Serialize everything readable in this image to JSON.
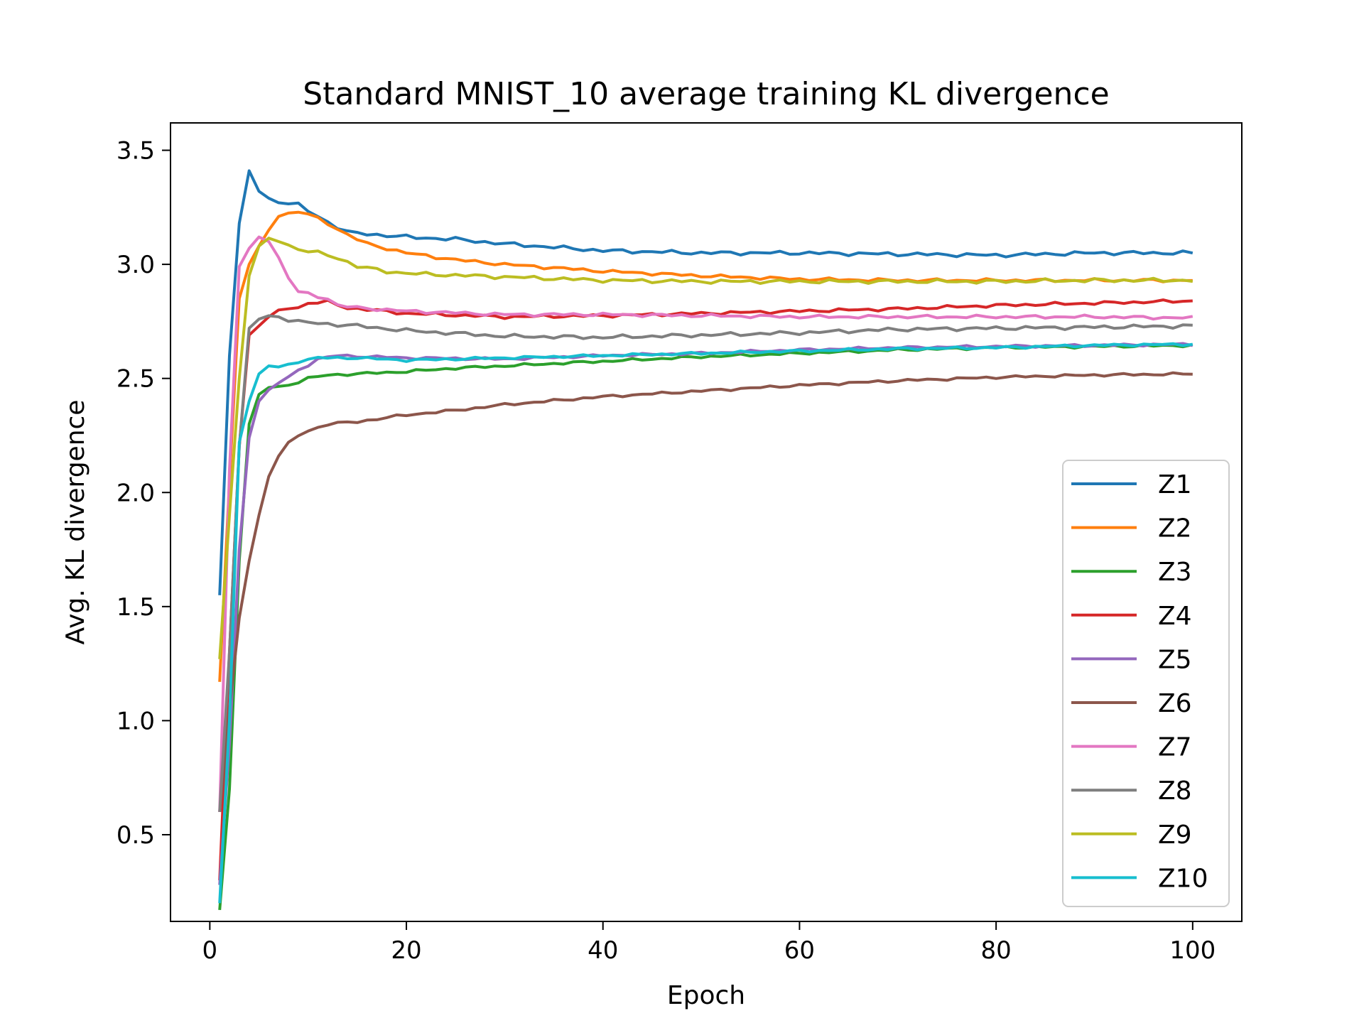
{
  "chart_data": {
    "type": "line",
    "title": "Standard MNIST_10 average training KL divergence",
    "xlabel": "Epoch",
    "ylabel": "Avg. KL divergence",
    "xlim": [
      -4,
      105
    ],
    "ylim": [
      0.12,
      3.62
    ],
    "xticks": [
      0,
      20,
      40,
      60,
      80,
      100
    ],
    "yticks": [
      0.5,
      1.0,
      1.5,
      2.0,
      2.5,
      3.0,
      3.5
    ],
    "xtick_labels": [
      "0",
      "20",
      "40",
      "60",
      "80",
      "100"
    ],
    "ytick_labels": [
      "0.5",
      "1.0",
      "1.5",
      "2.0",
      "2.5",
      "3.0",
      "3.5"
    ],
    "grid": false,
    "legend_position": "lower right",
    "epochs": {
      "start": 1,
      "end": 100
    },
    "series": [
      {
        "name": "Z1",
        "color": "#1f77b4",
        "anchors": [
          [
            1,
            1.55
          ],
          [
            2,
            2.6
          ],
          [
            3,
            3.18
          ],
          [
            4,
            3.41
          ],
          [
            5,
            3.32
          ],
          [
            6,
            3.29
          ],
          [
            7,
            3.27
          ],
          [
            9,
            3.26
          ],
          [
            11,
            3.21
          ],
          [
            14,
            3.14
          ],
          [
            20,
            3.12
          ],
          [
            25,
            3.11
          ],
          [
            30,
            3.09
          ],
          [
            40,
            3.06
          ],
          [
            50,
            3.05
          ],
          [
            60,
            3.05
          ],
          [
            70,
            3.045
          ],
          [
            80,
            3.04
          ],
          [
            90,
            3.05
          ],
          [
            100,
            3.05
          ]
        ],
        "jitter": 0.006
      },
      {
        "name": "Z2",
        "color": "#ff7f0e",
        "anchors": [
          [
            1,
            1.17
          ],
          [
            2,
            2.05
          ],
          [
            3,
            2.85
          ],
          [
            4,
            3.0
          ],
          [
            5,
            3.08
          ],
          [
            6,
            3.15
          ],
          [
            7,
            3.21
          ],
          [
            8,
            3.225
          ],
          [
            9,
            3.23
          ],
          [
            10,
            3.22
          ],
          [
            12,
            3.18
          ],
          [
            14,
            3.13
          ],
          [
            16,
            3.09
          ],
          [
            20,
            3.05
          ],
          [
            25,
            3.02
          ],
          [
            30,
            3.0
          ],
          [
            40,
            2.97
          ],
          [
            50,
            2.95
          ],
          [
            60,
            2.935
          ],
          [
            70,
            2.93
          ],
          [
            80,
            2.93
          ],
          [
            90,
            2.93
          ],
          [
            100,
            2.93
          ]
        ],
        "jitter": 0.005
      },
      {
        "name": "Z3",
        "color": "#2ca02c",
        "anchors": [
          [
            1,
            0.17
          ],
          [
            2,
            0.7
          ],
          [
            3,
            1.7
          ],
          [
            4,
            2.3
          ],
          [
            5,
            2.43
          ],
          [
            6,
            2.46
          ],
          [
            8,
            2.47
          ],
          [
            10,
            2.5
          ],
          [
            12,
            2.515
          ],
          [
            15,
            2.52
          ],
          [
            20,
            2.53
          ],
          [
            25,
            2.545
          ],
          [
            30,
            2.555
          ],
          [
            40,
            2.575
          ],
          [
            50,
            2.595
          ],
          [
            60,
            2.61
          ],
          [
            70,
            2.625
          ],
          [
            80,
            2.635
          ],
          [
            90,
            2.64
          ],
          [
            100,
            2.645
          ]
        ],
        "jitter": 0.004
      },
      {
        "name": "Z4",
        "color": "#d62728",
        "anchors": [
          [
            1,
            0.3
          ],
          [
            2,
            1.3
          ],
          [
            3,
            2.2
          ],
          [
            4,
            2.69
          ],
          [
            5,
            2.73
          ],
          [
            6,
            2.77
          ],
          [
            7,
            2.8
          ],
          [
            9,
            2.81
          ],
          [
            10,
            2.83
          ],
          [
            12,
            2.835
          ],
          [
            14,
            2.81
          ],
          [
            20,
            2.785
          ],
          [
            30,
            2.77
          ],
          [
            40,
            2.775
          ],
          [
            50,
            2.785
          ],
          [
            60,
            2.795
          ],
          [
            70,
            2.805
          ],
          [
            80,
            2.82
          ],
          [
            90,
            2.83
          ],
          [
            100,
            2.84
          ]
        ],
        "jitter": 0.005
      },
      {
        "name": "Z5",
        "color": "#9467bd",
        "anchors": [
          [
            1,
            0.28
          ],
          [
            2,
            0.9
          ],
          [
            3,
            1.75
          ],
          [
            4,
            2.24
          ],
          [
            5,
            2.4
          ],
          [
            6,
            2.45
          ],
          [
            7,
            2.48
          ],
          [
            9,
            2.535
          ],
          [
            11,
            2.585
          ],
          [
            13,
            2.6
          ],
          [
            20,
            2.59
          ],
          [
            30,
            2.585
          ],
          [
            40,
            2.6
          ],
          [
            50,
            2.61
          ],
          [
            60,
            2.625
          ],
          [
            70,
            2.635
          ],
          [
            80,
            2.64
          ],
          [
            90,
            2.645
          ],
          [
            100,
            2.65
          ]
        ],
        "jitter": 0.004
      },
      {
        "name": "Z6",
        "color": "#8c564b",
        "anchors": [
          [
            1,
            0.6
          ],
          [
            2,
            1.05
          ],
          [
            3,
            1.45
          ],
          [
            4,
            1.7
          ],
          [
            5,
            1.9
          ],
          [
            6,
            2.07
          ],
          [
            7,
            2.16
          ],
          [
            8,
            2.22
          ],
          [
            9,
            2.25
          ],
          [
            10,
            2.27
          ],
          [
            12,
            2.3
          ],
          [
            15,
            2.31
          ],
          [
            20,
            2.34
          ],
          [
            25,
            2.36
          ],
          [
            30,
            2.385
          ],
          [
            40,
            2.42
          ],
          [
            50,
            2.445
          ],
          [
            60,
            2.47
          ],
          [
            70,
            2.49
          ],
          [
            80,
            2.505
          ],
          [
            90,
            2.515
          ],
          [
            100,
            2.52
          ]
        ],
        "jitter": 0.004
      },
      {
        "name": "Z7",
        "color": "#e377c2",
        "anchors": [
          [
            1,
            0.6
          ],
          [
            2,
            2.1
          ],
          [
            3,
            2.99
          ],
          [
            4,
            3.07
          ],
          [
            5,
            3.12
          ],
          [
            6,
            3.1
          ],
          [
            7,
            3.03
          ],
          [
            8,
            2.94
          ],
          [
            9,
            2.88
          ],
          [
            11,
            2.86
          ],
          [
            12,
            2.85
          ],
          [
            13,
            2.82
          ],
          [
            15,
            2.81
          ],
          [
            20,
            2.795
          ],
          [
            30,
            2.78
          ],
          [
            40,
            2.78
          ],
          [
            50,
            2.775
          ],
          [
            60,
            2.77
          ],
          [
            70,
            2.77
          ],
          [
            80,
            2.77
          ],
          [
            90,
            2.77
          ],
          [
            100,
            2.765
          ]
        ],
        "jitter": 0.005
      },
      {
        "name": "Z8",
        "color": "#7f7f7f",
        "anchors": [
          [
            1,
            0.6
          ],
          [
            2,
            1.3
          ],
          [
            3,
            2.2
          ],
          [
            4,
            2.72
          ],
          [
            5,
            2.76
          ],
          [
            6,
            2.775
          ],
          [
            7,
            2.77
          ],
          [
            8,
            2.75
          ],
          [
            10,
            2.745
          ],
          [
            15,
            2.73
          ],
          [
            20,
            2.71
          ],
          [
            30,
            2.685
          ],
          [
            40,
            2.68
          ],
          [
            50,
            2.69
          ],
          [
            60,
            2.7
          ],
          [
            70,
            2.715
          ],
          [
            80,
            2.72
          ],
          [
            90,
            2.725
          ],
          [
            100,
            2.73
          ]
        ],
        "jitter": 0.006
      },
      {
        "name": "Z9",
        "color": "#bcbd22",
        "anchors": [
          [
            1,
            1.27
          ],
          [
            2,
            1.9
          ],
          [
            3,
            2.5
          ],
          [
            4,
            2.95
          ],
          [
            5,
            3.08
          ],
          [
            6,
            3.115
          ],
          [
            7,
            3.1
          ],
          [
            8,
            3.085
          ],
          [
            9,
            3.065
          ],
          [
            11,
            3.05
          ],
          [
            13,
            3.03
          ],
          [
            15,
            2.99
          ],
          [
            18,
            2.97
          ],
          [
            20,
            2.96
          ],
          [
            30,
            2.945
          ],
          [
            40,
            2.93
          ],
          [
            50,
            2.925
          ],
          [
            60,
            2.925
          ],
          [
            70,
            2.925
          ],
          [
            80,
            2.925
          ],
          [
            90,
            2.93
          ],
          [
            100,
            2.93
          ]
        ],
        "jitter": 0.006
      },
      {
        "name": "Z10",
        "color": "#17becf",
        "anchors": [
          [
            1,
            0.2
          ],
          [
            2,
            1.0
          ],
          [
            3,
            2.22
          ],
          [
            4,
            2.4
          ],
          [
            5,
            2.52
          ],
          [
            6,
            2.555
          ],
          [
            7,
            2.55
          ],
          [
            9,
            2.575
          ],
          [
            11,
            2.59
          ],
          [
            15,
            2.59
          ],
          [
            20,
            2.58
          ],
          [
            30,
            2.59
          ],
          [
            40,
            2.6
          ],
          [
            50,
            2.61
          ],
          [
            60,
            2.62
          ],
          [
            70,
            2.63
          ],
          [
            80,
            2.635
          ],
          [
            90,
            2.645
          ],
          [
            100,
            2.65
          ]
        ],
        "jitter": 0.004
      }
    ]
  }
}
